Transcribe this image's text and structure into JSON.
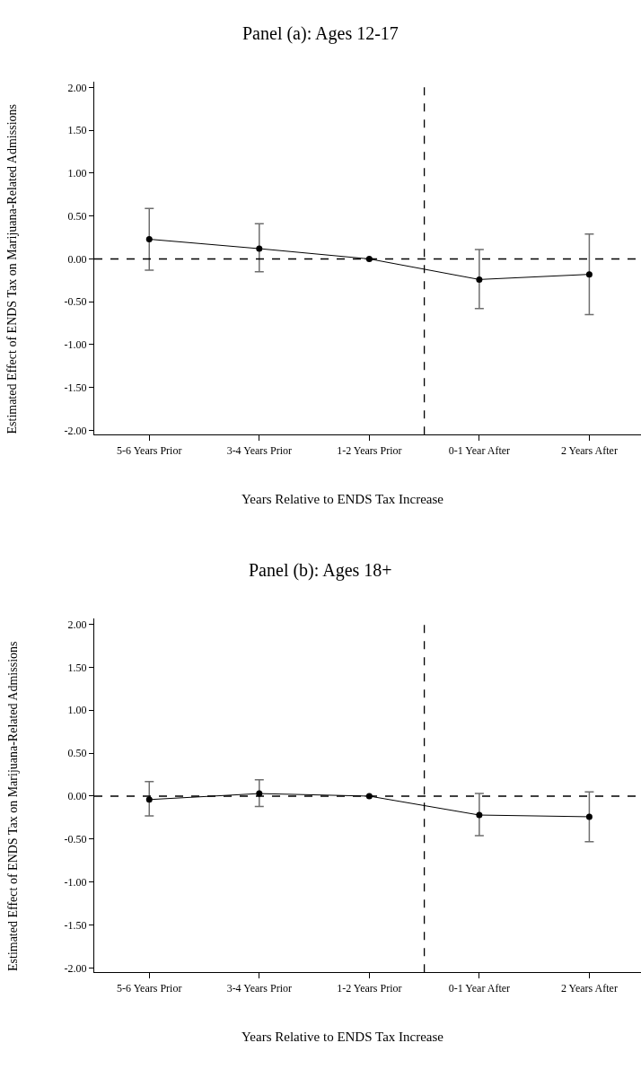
{
  "chart_data": [
    {
      "type": "line",
      "title": "Panel (a): Ages 12-17",
      "xlabel": "Years Relative to ENDS Tax Increase",
      "ylabel": "Estimated Effect of ENDS Tax on Marijuana-Related Admissions",
      "categories": [
        "5-6 Years Prior",
        "3-4 Years Prior",
        "1-2 Years Prior",
        "0-1 Year After",
        "2 Years After"
      ],
      "series": [
        {
          "color": "#000000",
          "values": [
            0.23,
            0.12,
            0.0,
            -0.24,
            -0.18
          ],
          "errors": [
            [
              -0.13,
              0.59
            ],
            [
              -0.15,
              0.41
            ],
            null,
            [
              -0.58,
              0.11
            ],
            [
              -0.65,
              0.29
            ]
          ]
        }
      ],
      "ylim": [
        -2.05,
        2.07
      ],
      "yticks": [
        {
          "value": 2,
          "label": "2.00"
        },
        {
          "value": 1.5,
          "label": "1.50"
        },
        {
          "value": 1,
          "label": "1.00"
        },
        {
          "value": 0.5,
          "label": "0.50"
        },
        {
          "value": 0,
          "label": "0.00"
        },
        {
          "value": -0.5,
          "label": "-0.50"
        },
        {
          "value": -1,
          "label": "-1.00"
        },
        {
          "value": -1.5,
          "label": "-1.50"
        },
        {
          "value": -2,
          "label": "-2.00"
        }
      ],
      "ref_lines": [
        {
          "axis": "y",
          "value": 0,
          "color": "#000000",
          "line_style": "dashed"
        }
      ],
      "marker": "circle",
      "line_style": "solid"
    },
    {
      "type": "line",
      "title": "Panel (b): Ages 18+",
      "xlabel": "Years Relative to ENDS Tax Increase",
      "ylabel": "Estimated Effect of ENDS Tax on Marijuana-Related Admissions",
      "categories": [
        "5-6 Years Prior",
        "3-4 Years Prior",
        "1-2 Years Prior",
        "0-1 Year After",
        "2 Years After"
      ],
      "series": [
        {
          "color": "#000000",
          "values": [
            -0.04,
            0.03,
            0.0,
            -0.22,
            -0.24
          ],
          "errors": [
            [
              -0.23,
              0.17
            ],
            [
              -0.12,
              0.19
            ],
            null,
            [
              -0.46,
              0.03
            ],
            [
              -0.53,
              0.05
            ]
          ]
        }
      ],
      "ylim": [
        -2.05,
        2.07
      ],
      "yticks": [
        {
          "value": 2,
          "label": "2.00"
        },
        {
          "value": 1.5,
          "label": "1.50"
        },
        {
          "value": 1,
          "label": "1.00"
        },
        {
          "value": 0.5,
          "label": "0.50"
        },
        {
          "value": 0,
          "label": "0.00"
        },
        {
          "value": -0.5,
          "label": "-0.50"
        },
        {
          "value": -1,
          "label": "-1.00"
        },
        {
          "value": -1.5,
          "label": "-1.50"
        },
        {
          "value": -2,
          "label": "-2.00"
        }
      ],
      "ref_lines": [
        {
          "axis": "y",
          "value": 0,
          "color": "#000000",
          "line_style": "dashed"
        }
      ],
      "marker": "circle",
      "line_style": "solid"
    }
  ]
}
